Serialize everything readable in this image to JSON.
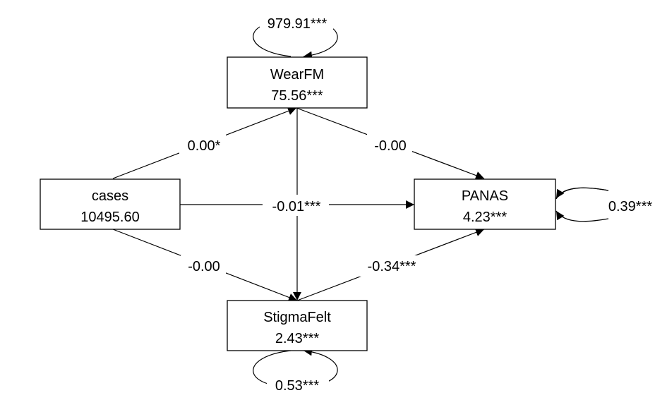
{
  "nodes": {
    "wearfm": {
      "name": "WearFM",
      "value": "75.56***"
    },
    "cases": {
      "name": "cases",
      "value": "10495.60"
    },
    "panas": {
      "name": "PANAS",
      "value": "4.23***"
    },
    "stigmafelt": {
      "name": "StigmaFelt",
      "value": "2.43***"
    }
  },
  "variances": {
    "wearfm": "979.91***",
    "panas": "0.39***",
    "stigmafelt": "0.53***"
  },
  "paths": {
    "cases_to_wearfm": "0.00*",
    "wearfm_to_panas": "-0.00",
    "cases_to_panas": "-0.01***",
    "cases_to_stigmafelt": "-0.00",
    "stigmafelt_to_panas": "-0.34***"
  },
  "colors": {
    "line": "#000000",
    "background": "#ffffff"
  }
}
